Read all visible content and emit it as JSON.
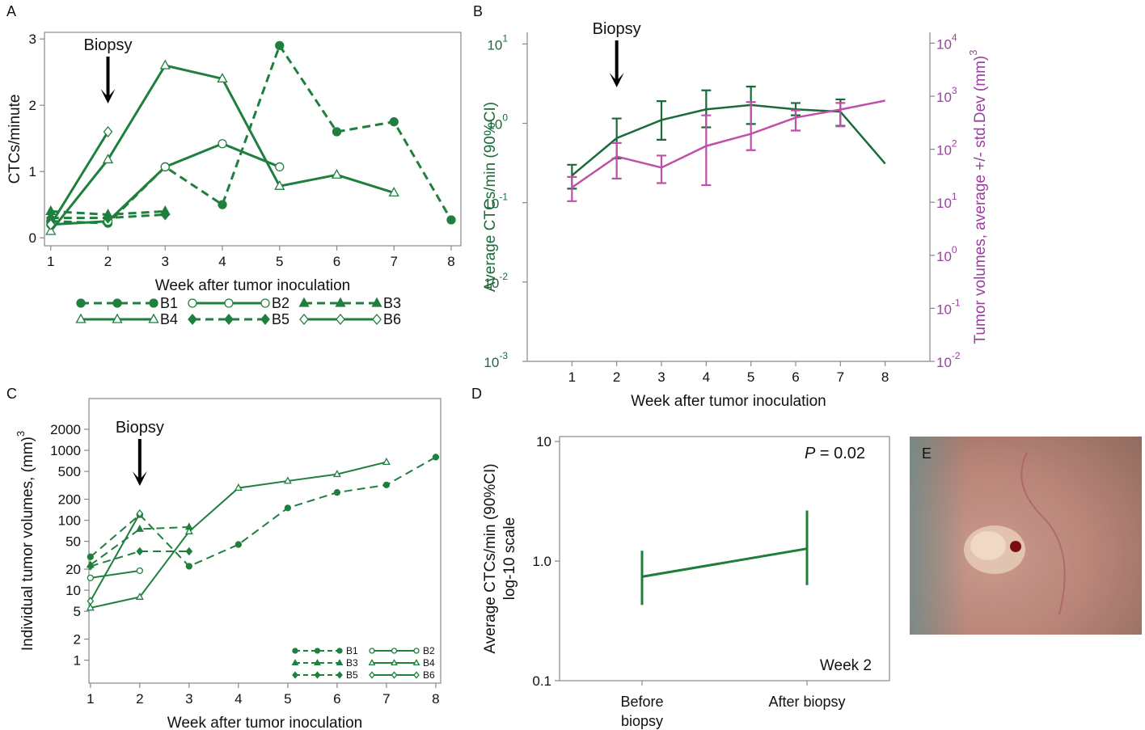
{
  "chart_data": [
    {
      "panel": "A",
      "type": "line",
      "ylabel": "CTCs/minute",
      "xlabel": "Week after tumor inoculation",
      "x": [
        1,
        2,
        3,
        4,
        5,
        6,
        7,
        8
      ],
      "xlim": [
        0.89,
        8.17
      ],
      "xticks": [
        1,
        2,
        3,
        4,
        5,
        6,
        7,
        8
      ],
      "ylim": [
        -0.12,
        3.1
      ],
      "yticks": [
        0,
        1,
        2,
        3
      ],
      "frame": "box",
      "legend": "below",
      "annotation": {
        "text": "Biopsy",
        "x": 2
      },
      "series": [
        {
          "name": "B1",
          "color": "#1f7f3f",
          "marker": "circle",
          "filled": true,
          "dashed": true,
          "values": [
            0.25,
            0.22,
            1.07,
            0.5,
            2.9,
            1.6,
            1.75,
            0.27
          ]
        },
        {
          "name": "B2",
          "color": "#1f7f3f",
          "marker": "circle",
          "filled": false,
          "dashed": false,
          "values": [
            0.2,
            0.25,
            1.07,
            1.42,
            1.07,
            null,
            null,
            null
          ]
        },
        {
          "name": "B3",
          "color": "#1f7f3f",
          "marker": "triangle",
          "filled": true,
          "dashed": true,
          "values": [
            0.4,
            0.35,
            0.4,
            null,
            null,
            null,
            null,
            null
          ]
        },
        {
          "name": "B4",
          "color": "#1f7f3f",
          "marker": "triangle",
          "filled": false,
          "dashed": false,
          "values": [
            0.1,
            1.18,
            2.6,
            2.4,
            0.78,
            0.95,
            0.68,
            null
          ]
        },
        {
          "name": "B5",
          "color": "#1f7f3f",
          "marker": "diamond",
          "filled": true,
          "dashed": true,
          "values": [
            0.3,
            0.3,
            0.35,
            null,
            null,
            null,
            null,
            null
          ]
        },
        {
          "name": "B6",
          "color": "#1f7f3f",
          "marker": "diamond",
          "filled": false,
          "dashed": false,
          "values": [
            0.2,
            1.6,
            null,
            null,
            null,
            null,
            null,
            null
          ]
        }
      ]
    },
    {
      "panel": "B",
      "type": "line",
      "ylabel": "Average CTCs/min (90%CI)",
      "ylabel_color": "#1b6a3a",
      "y2label": "Tumor volumes, average +/- std.Dev (mm)",
      "y2label_superscript": "3",
      "y2label_color": "#9b3fa0",
      "xlabel": "Week after tumor inoculation",
      "x": [
        1,
        2,
        3,
        4,
        5,
        6,
        7,
        8
      ],
      "xlim": [
        0,
        9
      ],
      "xticks": [
        1,
        2,
        3,
        4,
        5,
        6,
        7,
        8
      ],
      "ylog": true,
      "ylim": [
        0.001,
        14
      ],
      "yticks": [
        {
          "value": 0.001,
          "label": "10",
          "exponent": "-3"
        },
        {
          "value": 0.01,
          "label": "10",
          "exponent": "-2"
        },
        {
          "value": 0.1,
          "label": "10",
          "exponent": "-1"
        },
        {
          "value": 1,
          "label": "10",
          "exponent": "0"
        },
        {
          "value": 10,
          "label": "10",
          "exponent": "1"
        }
      ],
      "y2lim": [
        0.01,
        16000
      ],
      "y2ticks": [
        {
          "value": 0.01,
          "label": "10",
          "exponent": "-2"
        },
        {
          "value": 0.1,
          "label": "10",
          "exponent": "-1"
        },
        {
          "value": 1,
          "label": "10",
          "exponent": "0"
        },
        {
          "value": 10,
          "label": "10",
          "exponent": "1"
        },
        {
          "value": 100,
          "label": "10",
          "exponent": "2"
        },
        {
          "value": 1000,
          "label": "10",
          "exponent": "3"
        },
        {
          "value": 10000,
          "label": "10",
          "exponent": "4"
        }
      ],
      "frame": "open",
      "annotation": {
        "text": "Biopsy",
        "x": 2
      },
      "series": [
        {
          "color": "#1b6a3a",
          "values": [
            0.22,
            0.65,
            1.1,
            1.5,
            1.7,
            1.5,
            1.4,
            0.31
          ],
          "lower": [
            0.15,
            0.36,
            0.62,
            0.89,
            0.98,
            1.26,
            0.93,
            null
          ],
          "upper": [
            0.3,
            1.15,
            1.9,
            2.6,
            2.9,
            1.8,
            2.0,
            null
          ]
        },
        {
          "color": "#c04fa8",
          "axis": "y2",
          "values": [
            19,
            73,
            45,
            115,
            195,
            395,
            560,
            825
          ],
          "lower": [
            10.5,
            28,
            23,
            21,
            96,
            225,
            270,
            null
          ],
          "upper": [
            30,
            131,
            76,
            435,
            775,
            540,
            745,
            null
          ]
        }
      ]
    },
    {
      "panel": "C",
      "type": "line",
      "ylabel": "Individual tumor volumes, (mm)",
      "ylabel_superscript": "3",
      "xlabel": "Week after tumor inoculation",
      "x": [
        1,
        2,
        3,
        4,
        5,
        6,
        7,
        8
      ],
      "xlim": [
        0.97,
        8.1
      ],
      "xticks": [
        1,
        2,
        3,
        4,
        5,
        6,
        7,
        8
      ],
      "ylog": true,
      "ylim": [
        0.47,
        5500
      ],
      "yticks": [
        1,
        2,
        5,
        10,
        20,
        50,
        100,
        200,
        500,
        1000,
        2000
      ],
      "frame": "box",
      "legend": "lower right",
      "annotation": {
        "text": "Biopsy",
        "x": 2
      },
      "series": [
        {
          "name": "B1",
          "color": "#1f7f3f",
          "marker": "circle",
          "filled": true,
          "dashed": true,
          "values": [
            30,
            120,
            22,
            45,
            150,
            250,
            320,
            800
          ]
        },
        {
          "name": "B2",
          "color": "#1f7f3f",
          "marker": "circle",
          "filled": false,
          "dashed": false,
          "values": [
            15,
            19,
            null,
            null,
            null,
            null,
            null,
            null
          ]
        },
        {
          "name": "B3",
          "color": "#1f7f3f",
          "marker": "triangle",
          "filled": true,
          "dashed": true,
          "values": [
            23,
            75,
            80,
            null,
            null,
            null,
            null,
            null
          ]
        },
        {
          "name": "B4",
          "color": "#1f7f3f",
          "marker": "triangle",
          "filled": false,
          "dashed": false,
          "values": [
            5.6,
            8,
            69,
            290,
            365,
            455,
            680,
            null
          ]
        },
        {
          "name": "B5",
          "color": "#1f7f3f",
          "marker": "diamond",
          "filled": true,
          "dashed": true,
          "values": [
            22,
            36,
            36,
            null,
            null,
            null,
            null,
            null
          ]
        },
        {
          "name": "B6",
          "color": "#1f7f3f",
          "marker": "diamond",
          "filled": false,
          "dashed": false,
          "values": [
            7,
            125,
            null,
            null,
            null,
            null,
            null,
            null
          ]
        }
      ]
    },
    {
      "panel": "D",
      "type": "errorbar",
      "ylabel": [
        "Average CTCs/min (90%CI)",
        "log-10 scale"
      ],
      "categories": [
        "Before biopsy",
        "After biopsy"
      ],
      "ylog": true,
      "ylim": [
        0.1,
        11
      ],
      "yticks": [
        0.1,
        {
          "value": 1,
          "label": "1.0"
        },
        10
      ],
      "frame": "box",
      "p_symbol": "P",
      "p_text": " = 0.02",
      "note": "Week 2",
      "color": "#1d7d3a",
      "values": [
        0.74,
        1.27
      ],
      "lower": [
        0.43,
        0.63
      ],
      "upper": [
        1.22,
        2.65
      ]
    }
  ],
  "photo": {
    "panel": "E"
  }
}
